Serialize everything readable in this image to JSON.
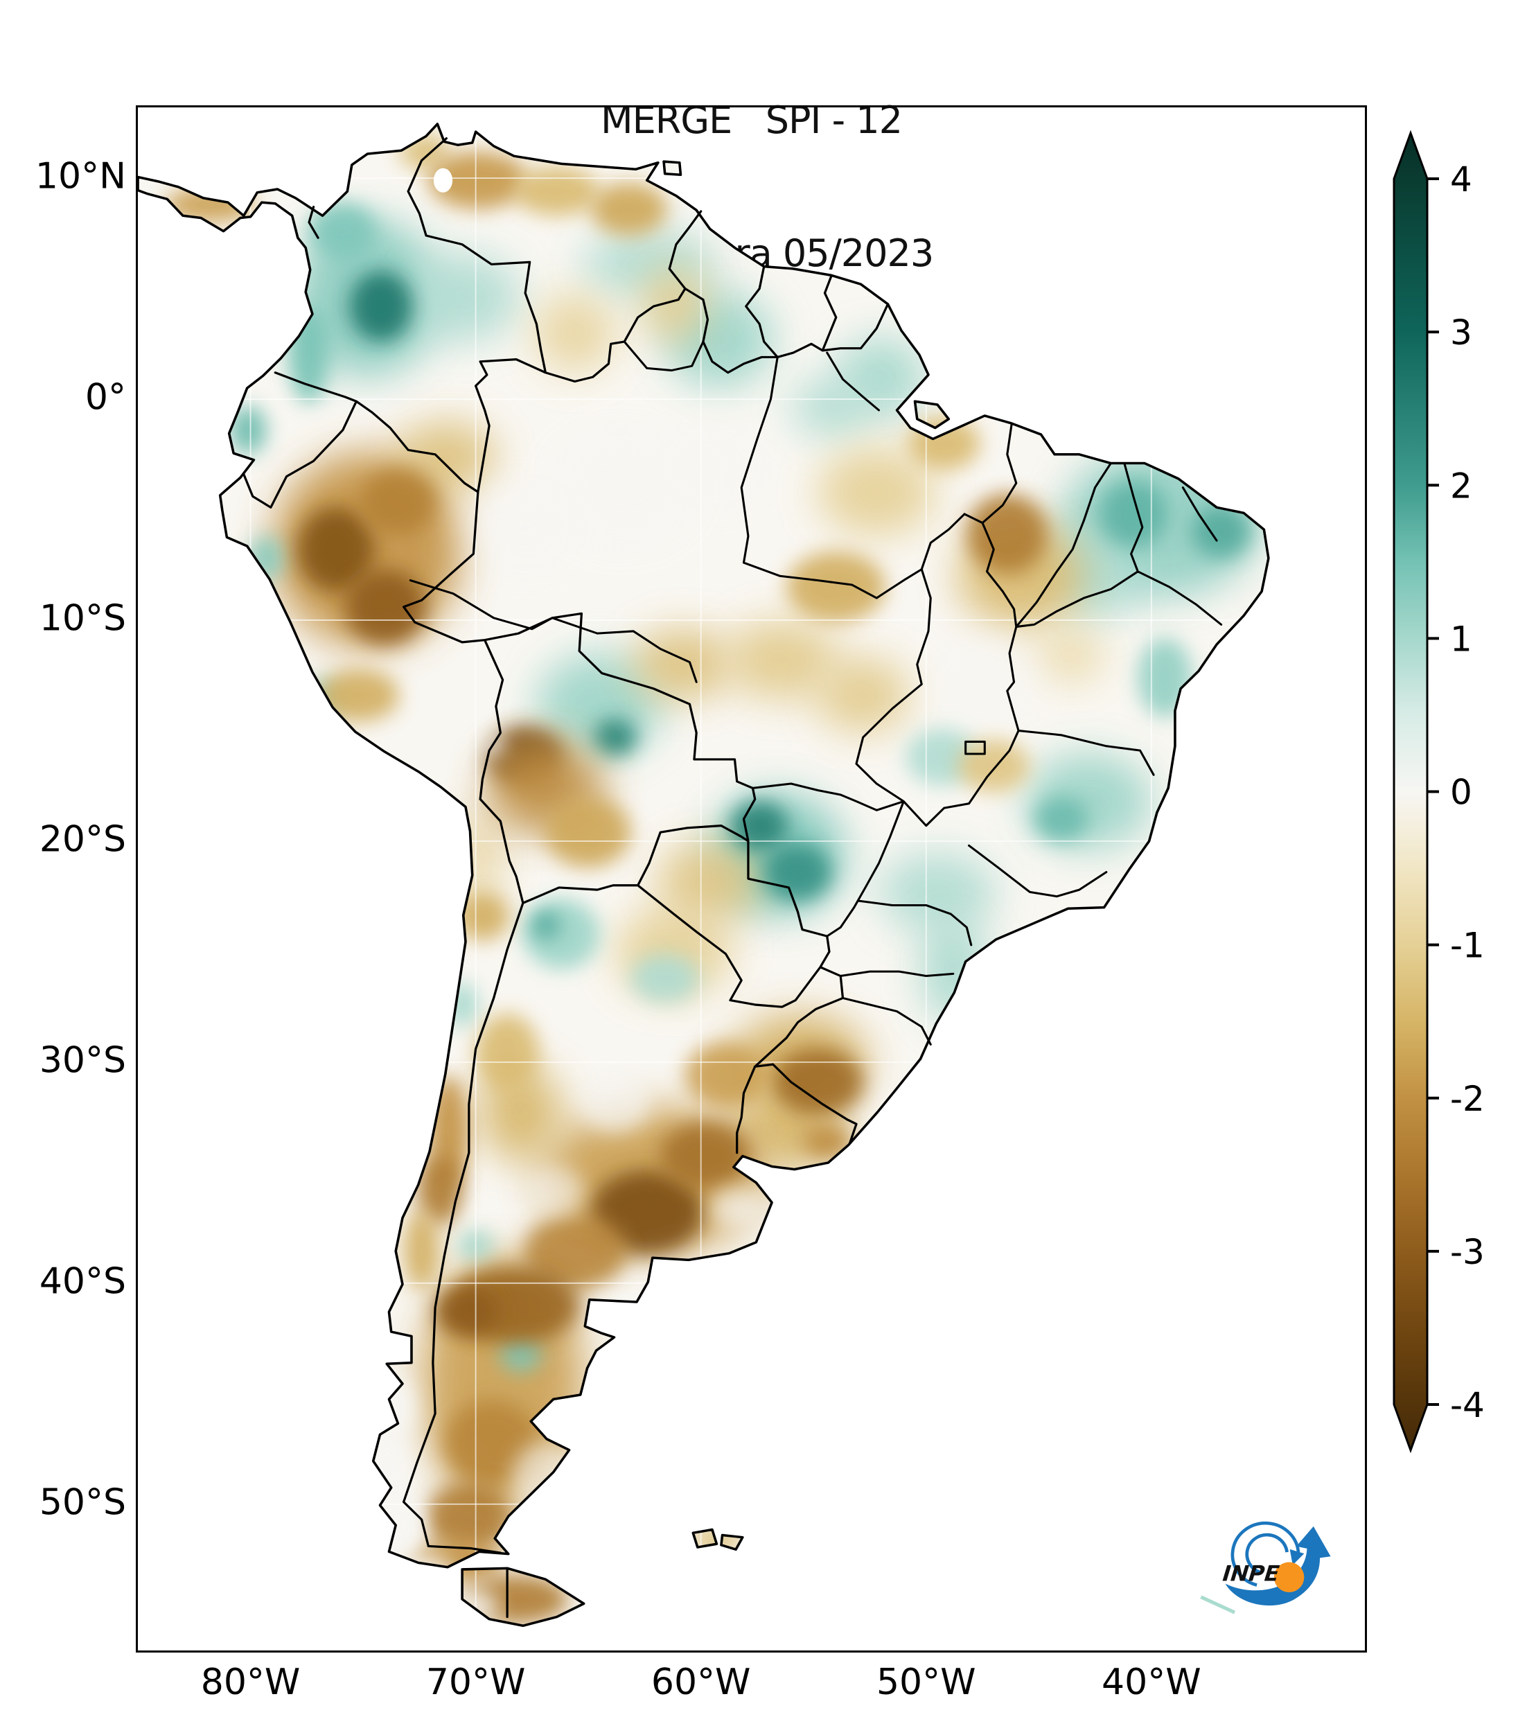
{
  "title": {
    "line1": "MERGE   SPI - 12",
    "line2": "Válido para 05/2023"
  },
  "axes": {
    "lat_ticks": [
      {
        "label": "10°N",
        "lat": 10
      },
      {
        "label": "0°",
        "lat": 0
      },
      {
        "label": "10°S",
        "lat": -10
      },
      {
        "label": "20°S",
        "lat": -20
      },
      {
        "label": "30°S",
        "lat": -30
      },
      {
        "label": "40°S",
        "lat": -40
      },
      {
        "label": "50°S",
        "lat": -50
      }
    ],
    "lon_ticks": [
      {
        "label": "80°W",
        "lon": -80
      },
      {
        "label": "70°W",
        "lon": -70
      },
      {
        "label": "60°W",
        "lon": -60
      },
      {
        "label": "50°W",
        "lon": -50
      },
      {
        "label": "40°W",
        "lon": -40
      }
    ]
  },
  "colorbar": {
    "vmin": -4,
    "vmax": 4,
    "ticks": [
      {
        "label": "4",
        "value": 4
      },
      {
        "label": "3",
        "value": 3
      },
      {
        "label": "2",
        "value": 2
      },
      {
        "label": "1",
        "value": 1
      },
      {
        "label": "0",
        "value": 0
      },
      {
        "label": "-1",
        "value": -1
      },
      {
        "label": "-2",
        "value": -2
      },
      {
        "label": "-3",
        "value": -3
      },
      {
        "label": "-4",
        "value": -4
      }
    ],
    "gradient": [
      {
        "v": 4.3,
        "c": "#072e26"
      },
      {
        "v": 4.0,
        "c": "#0a3c31"
      },
      {
        "v": 3.0,
        "c": "#0f655a"
      },
      {
        "v": 2.0,
        "c": "#3f9c8e"
      },
      {
        "v": 1.5,
        "c": "#74c2b4"
      },
      {
        "v": 1.0,
        "c": "#a6d8cc"
      },
      {
        "v": 0.5,
        "c": "#d8ece6"
      },
      {
        "v": 0.0,
        "c": "#f7f6f3"
      },
      {
        "v": -0.5,
        "c": "#f1e6c4"
      },
      {
        "v": -1.0,
        "c": "#e5d096"
      },
      {
        "v": -1.5,
        "c": "#d6b567"
      },
      {
        "v": -2.0,
        "c": "#c29143"
      },
      {
        "v": -2.5,
        "c": "#aa762d"
      },
      {
        "v": -3.0,
        "c": "#8e5c1c"
      },
      {
        "v": -3.5,
        "c": "#714711"
      },
      {
        "v": -4.0,
        "c": "#54340a"
      },
      {
        "v": -4.3,
        "c": "#432a08"
      }
    ]
  },
  "logo": {
    "text": "INPE",
    "blue": "#1b76bd",
    "orange": "#f7941e"
  },
  "chart_data": {
    "type": "heatmap",
    "title": "MERGE   SPI - 12",
    "subtitle": "Válido para 05/2023",
    "dataset": "MERGE",
    "index": "SPI-12",
    "valid_for": "05/2023",
    "extent": {
      "lon_min": -85,
      "lon_max": -30.52,
      "lat_min": -56.62,
      "lat_max": 13.2
    },
    "colorbar": {
      "label_values": [
        4,
        3,
        2,
        1,
        0,
        -1,
        -2,
        -3,
        -4
      ],
      "scheme": "brown-white-teal diverging (BrBG)"
    },
    "legend_position": "right",
    "regions": [
      {
        "n": "colombia-broad",
        "lon": -74.8,
        "lat": 4.6,
        "rx": 3.2,
        "ry": 3.6,
        "spi": 1.3,
        "b": "x"
      },
      {
        "n": "llanos-light",
        "lon": -70.6,
        "lat": 4.6,
        "rx": 2.6,
        "ry": 2.0,
        "spi": 0.9,
        "b": "x"
      },
      {
        "n": "guayana-venezuela",
        "lon": -62.3,
        "lat": 6.1,
        "rx": 3.0,
        "ry": 1.5,
        "spi": 0.9,
        "b": "x"
      },
      {
        "n": "guyana-roraima",
        "lon": -59.2,
        "lat": 2.7,
        "rx": 2.4,
        "ry": 2.2,
        "spi": 1.1,
        "b": "x"
      },
      {
        "n": "amapa",
        "lon": -52.0,
        "lat": 1.0,
        "rx": 2.0,
        "ry": 1.8,
        "spi": 1.0,
        "b": "x"
      },
      {
        "n": "norte-para",
        "lon": -54.2,
        "lat": -0.4,
        "rx": 1.8,
        "ry": 1.3,
        "spi": 0.9,
        "b": "x"
      },
      {
        "n": "ne-brazil-broad",
        "lon": -39.6,
        "lat": -5.6,
        "rx": 4.4,
        "ry": 3.4,
        "spi": 1.2,
        "b": "x"
      },
      {
        "n": "tocantins-bahia-teal",
        "lon": -42.6,
        "lat": -8.0,
        "rx": 2.0,
        "ry": 2.0,
        "spi": 0.9,
        "b": "x"
      },
      {
        "n": "minas-espirito",
        "lon": -42.8,
        "lat": -18.2,
        "rx": 2.8,
        "ry": 2.2,
        "spi": 1.1,
        "b": "x"
      },
      {
        "n": "beni-broad",
        "lon": -64.5,
        "lat": -13.8,
        "rx": 2.8,
        "ry": 2.3,
        "spi": 1.1,
        "b": "x"
      },
      {
        "n": "pantanal-broad",
        "lon": -56.6,
        "lat": -20.6,
        "rx": 3.0,
        "ry": 2.8,
        "spi": 1.4,
        "b": "x"
      },
      {
        "n": "sp-interior",
        "lon": -49.5,
        "lat": -22.3,
        "rx": 2.6,
        "ry": 1.8,
        "spi": 0.9,
        "b": "x"
      },
      {
        "n": "coast-sc",
        "lon": -48.8,
        "lat": -25.8,
        "rx": 1.4,
        "ry": 2.4,
        "spi": 1.0,
        "b": "x"
      },
      {
        "n": "panama-brown",
        "lon": -81.8,
        "lat": 8.8,
        "rx": 2.0,
        "ry": 0.8,
        "spi": -1.8,
        "b": "s"
      },
      {
        "n": "guajira-tan",
        "lon": -72.3,
        "lat": 11.2,
        "rx": 1.1,
        "ry": 0.8,
        "spi": -1.3,
        "b": "s"
      },
      {
        "n": "falcon-brown",
        "lon": -69.9,
        "lat": 9.9,
        "rx": 2.2,
        "ry": 1.3,
        "spi": -1.9,
        "b": "s"
      },
      {
        "n": "caracas-tan",
        "lon": -66.4,
        "lat": 9.4,
        "rx": 1.9,
        "ry": 1.1,
        "spi": -1.4,
        "b": "s"
      },
      {
        "n": "orinoco-brown",
        "lon": -63.2,
        "lat": 8.6,
        "rx": 1.7,
        "ry": 1.2,
        "spi": -1.7,
        "b": "s"
      },
      {
        "n": "roraima-tan",
        "lon": -61.2,
        "lat": 4.3,
        "rx": 1.4,
        "ry": 1.7,
        "spi": -1.1,
        "b": "x"
      },
      {
        "n": "venezuela-south-tan",
        "lon": -65.6,
        "lat": 3.0,
        "rx": 1.8,
        "ry": 1.8,
        "spi": -0.9,
        "b": "x"
      },
      {
        "n": "peru-amazon-broad",
        "lon": -74.8,
        "lat": -6.8,
        "rx": 4.2,
        "ry": 4.4,
        "spi": -2.0,
        "b": "x"
      },
      {
        "n": "putumayo-tan",
        "lon": -71.3,
        "lat": -2.6,
        "rx": 2.2,
        "ry": 1.6,
        "spi": -1.3,
        "b": "x"
      },
      {
        "n": "rondonia-tan",
        "lon": -60.8,
        "lat": -12.0,
        "rx": 2.2,
        "ry": 1.6,
        "spi": -1.3,
        "b": "x"
      },
      {
        "n": "mt-tan-west",
        "lon": -56.4,
        "lat": -11.8,
        "rx": 2.5,
        "ry": 1.8,
        "spi": -1.1,
        "b": "x"
      },
      {
        "n": "mt-tan-east",
        "lon": -52.8,
        "lat": -13.4,
        "rx": 2.1,
        "ry": 1.7,
        "spi": -1.1,
        "b": "x"
      },
      {
        "n": "para-tan",
        "lon": -52.2,
        "lat": -4.2,
        "rx": 2.6,
        "ry": 2.0,
        "spi": -1.0,
        "b": "x"
      },
      {
        "n": "maranhao-halo",
        "lon": -45.8,
        "lat": -8.0,
        "rx": 2.8,
        "ry": 2.4,
        "spi": -1.4,
        "b": "x"
      },
      {
        "n": "bahia-tan",
        "lon": -43.6,
        "lat": -11.6,
        "rx": 1.5,
        "ry": 1.2,
        "spi": -0.8,
        "b": "x"
      },
      {
        "n": "chaco-tan",
        "lon": -61.2,
        "lat": -25.0,
        "rx": 2.6,
        "ry": 2.0,
        "spi": -1.0,
        "b": "x"
      },
      {
        "n": "paraguay-tan",
        "lon": -59.6,
        "lat": -21.8,
        "rx": 2.3,
        "ry": 1.8,
        "spi": -1.2,
        "b": "x"
      },
      {
        "n": "rs-halo",
        "lon": -55.6,
        "lat": -30.0,
        "rx": 3.0,
        "ry": 2.2,
        "spi": -1.6,
        "b": "x"
      },
      {
        "n": "uruguay-tan",
        "lon": -56.2,
        "lat": -33.0,
        "rx": 2.5,
        "ry": 1.9,
        "spi": -1.5,
        "b": "x"
      },
      {
        "n": "pampas-halo",
        "lon": -62.2,
        "lat": -35.3,
        "rx": 5.0,
        "ry": 3.3,
        "spi": -1.8,
        "b": "x"
      },
      {
        "n": "cuyo-tan",
        "lon": -68.0,
        "lat": -32.3,
        "rx": 1.8,
        "ry": 2.2,
        "spi": -1.5,
        "b": "x"
      },
      {
        "n": "chile-north-tan",
        "lon": -69.9,
        "lat": -20.8,
        "rx": 1.0,
        "ry": 2.2,
        "spi": -0.9,
        "b": "x"
      },
      {
        "n": "patagonia-broad",
        "lon": -68.8,
        "lat": -44.5,
        "rx": 3.6,
        "ry": 5.8,
        "spi": -1.8,
        "b": "x"
      },
      {
        "n": "amazon-white-1",
        "lon": -63.5,
        "lat": -4.0,
        "rx": 3.0,
        "ry": 2.4,
        "spi": 0,
        "b": "x",
        "o": 0.85
      },
      {
        "n": "amazon-white-2",
        "lon": -67.8,
        "lat": -5.8,
        "rx": 2.2,
        "ry": 1.8,
        "spi": 0,
        "b": "x",
        "o": 0.8
      },
      {
        "n": "amazon-white-3",
        "lon": -59.5,
        "lat": -3.0,
        "rx": 2.4,
        "ry": 1.8,
        "spi": 0,
        "b": "x",
        "o": 0.75
      },
      {
        "n": "goias-white",
        "lon": -47.5,
        "lat": -13.0,
        "rx": 2.2,
        "ry": 2.2,
        "spi": 0,
        "b": "x",
        "o": 0.7
      },
      {
        "n": "colombia-core",
        "lon": -74.2,
        "lat": 4.2,
        "rx": 1.4,
        "ry": 1.6,
        "spi": 2.7,
        "b": "s"
      },
      {
        "n": "colombia-north",
        "lon": -75.9,
        "lat": 7.6,
        "rx": 1.5,
        "ry": 1.3,
        "spi": 1.4,
        "b": "s"
      },
      {
        "n": "pacific-coast-colombia",
        "lon": -77.4,
        "lat": 2.0,
        "rx": 0.9,
        "ry": 2.2,
        "spi": 1.5,
        "b": "s"
      },
      {
        "n": "ecuador-coast",
        "lon": -80.1,
        "lat": -1.4,
        "rx": 0.8,
        "ry": 1.1,
        "spi": 1.6,
        "b": "s"
      },
      {
        "n": "ceara-core",
        "lon": -40.8,
        "lat": -5.2,
        "rx": 1.5,
        "ry": 1.5,
        "spi": 1.7,
        "b": "s"
      },
      {
        "n": "rn-core",
        "lon": -36.9,
        "lat": -6.0,
        "rx": 1.3,
        "ry": 1.2,
        "spi": 1.8,
        "b": "s"
      },
      {
        "n": "bahia-coast",
        "lon": -39.4,
        "lat": -12.6,
        "rx": 1.2,
        "ry": 1.8,
        "spi": 1.2,
        "b": "s"
      },
      {
        "n": "minas-core",
        "lon": -44.0,
        "lat": -19.0,
        "rx": 1.2,
        "ry": 1.0,
        "spi": 1.6,
        "b": "s"
      },
      {
        "n": "goias-teal",
        "lon": -49.3,
        "lat": -16.2,
        "rx": 1.6,
        "ry": 1.3,
        "spi": 0.9,
        "b": "s"
      },
      {
        "n": "beni-core",
        "lon": -63.8,
        "lat": -15.3,
        "rx": 0.95,
        "ry": 0.85,
        "spi": 2.4,
        "b": "s"
      },
      {
        "n": "paraguay-river-core",
        "lon": -57.4,
        "lat": -19.3,
        "rx": 1.25,
        "ry": 1.1,
        "spi": 2.5,
        "b": "s"
      },
      {
        "n": "ms-core",
        "lon": -55.7,
        "lat": -21.4,
        "rx": 1.5,
        "ry": 1.3,
        "spi": 2.2,
        "b": "s"
      },
      {
        "n": "chaco-teal",
        "lon": -61.6,
        "lat": -26.2,
        "rx": 1.5,
        "ry": 1.1,
        "spi": 0.9,
        "b": "s"
      },
      {
        "n": "puna-teal",
        "lon": -66.2,
        "lat": -24.2,
        "rx": 1.7,
        "ry": 1.6,
        "spi": 1.1,
        "b": "s"
      },
      {
        "n": "puna-core",
        "lon": -66.9,
        "lat": -23.8,
        "rx": 0.6,
        "ry": 0.6,
        "spi": 1.9,
        "b": "s"
      },
      {
        "n": "peru-coast-north",
        "lon": -79.3,
        "lat": -7.2,
        "rx": 0.8,
        "ry": 1.0,
        "spi": 1.3,
        "b": "s"
      },
      {
        "n": "peru-coast-south",
        "lon": -76.8,
        "lat": -13.6,
        "rx": 0.9,
        "ry": 0.9,
        "spi": 1.2,
        "b": "s"
      },
      {
        "n": "atacama-teal",
        "lon": -70.6,
        "lat": -27.4,
        "rx": 0.7,
        "ry": 1.0,
        "spi": 1.0,
        "b": "s"
      },
      {
        "n": "neuquen-teal",
        "lon": -70.0,
        "lat": -38.3,
        "rx": 0.8,
        "ry": 0.7,
        "spi": 1.0,
        "b": "s"
      },
      {
        "n": "chubut-teal",
        "lon": -68.0,
        "lat": -43.2,
        "rx": 0.9,
        "ry": 0.8,
        "spi": 1.4,
        "b": "s"
      },
      {
        "n": "loreto-core",
        "lon": -76.2,
        "lat": -6.8,
        "rx": 1.7,
        "ry": 1.9,
        "spi": -3.2,
        "b": "s"
      },
      {
        "n": "ucayali-core",
        "lon": -74.0,
        "lat": -9.4,
        "rx": 1.8,
        "ry": 1.7,
        "spi": -3.0,
        "b": "s"
      },
      {
        "n": "maranon-core",
        "lon": -73.4,
        "lat": -4.6,
        "rx": 1.7,
        "ry": 1.5,
        "spi": -2.3,
        "b": "s"
      },
      {
        "n": "peru-andes-south",
        "lon": -75.2,
        "lat": -13.4,
        "rx": 1.8,
        "ry": 1.2,
        "spi": -1.6,
        "b": "s"
      },
      {
        "n": "lapaz-core",
        "lon": -67.8,
        "lat": -16.2,
        "rx": 1.7,
        "ry": 1.4,
        "spi": -3.4,
        "b": "s"
      },
      {
        "n": "bolivia-andes-halo",
        "lon": -66.9,
        "lat": -17.6,
        "rx": 2.6,
        "ry": 2.1,
        "spi": -2.1,
        "b": "x"
      },
      {
        "n": "chuquisaca-tan",
        "lon": -65.0,
        "lat": -19.6,
        "rx": 1.9,
        "ry": 1.6,
        "spi": -1.7,
        "b": "s"
      },
      {
        "n": "mt-brown",
        "lon": -54.0,
        "lat": -8.5,
        "rx": 2.2,
        "ry": 1.6,
        "spi": -1.6,
        "b": "s"
      },
      {
        "n": "tocantins-core",
        "lon": -46.4,
        "lat": -6.1,
        "rx": 1.8,
        "ry": 1.8,
        "spi": -2.4,
        "b": "s"
      },
      {
        "n": "belem-tan",
        "lon": -49.2,
        "lat": -2.0,
        "rx": 1.6,
        "ry": 1.2,
        "spi": -1.4,
        "b": "s"
      },
      {
        "n": "mg-tan",
        "lon": -47.0,
        "lat": -16.6,
        "rx": 1.6,
        "ry": 1.2,
        "spi": -1.2,
        "b": "s"
      },
      {
        "n": "rs-core",
        "lon": -54.8,
        "lat": -30.9,
        "rx": 2.0,
        "ry": 1.5,
        "spi": -2.7,
        "b": "s"
      },
      {
        "n": "uruguay-east",
        "lon": -54.4,
        "lat": -33.6,
        "rx": 1.1,
        "ry": 0.8,
        "spi": -2.1,
        "b": "s"
      },
      {
        "n": "entre-rios",
        "lon": -58.9,
        "lat": -30.6,
        "rx": 1.8,
        "ry": 1.5,
        "spi": -1.8,
        "b": "s"
      },
      {
        "n": "pampas-core",
        "lon": -62.4,
        "lat": -36.8,
        "rx": 2.5,
        "ry": 1.9,
        "spi": -3.3,
        "b": "s"
      },
      {
        "n": "buenos-aires-core",
        "lon": -59.8,
        "lat": -34.2,
        "rx": 2.0,
        "ry": 1.5,
        "spi": -2.6,
        "b": "s"
      },
      {
        "n": "la-pampa-brown",
        "lon": -65.6,
        "lat": -38.6,
        "rx": 2.3,
        "ry": 1.7,
        "spi": -2.2,
        "b": "s"
      },
      {
        "n": "san-juan-tan",
        "lon": -68.6,
        "lat": -29.6,
        "rx": 1.4,
        "ry": 1.8,
        "spi": -1.4,
        "b": "s"
      },
      {
        "n": "antofagasta-brown",
        "lon": -69.7,
        "lat": -23.4,
        "rx": 1.2,
        "ry": 1.1,
        "spi": -1.6,
        "b": "s"
      },
      {
        "n": "chile-central",
        "lon": -71.2,
        "lat": -33.2,
        "rx": 0.9,
        "ry": 2.6,
        "spi": -2.0,
        "b": "s"
      },
      {
        "n": "chile-maule",
        "lon": -71.6,
        "lat": -35.8,
        "rx": 1.0,
        "ry": 1.6,
        "spi": -2.4,
        "b": "s"
      },
      {
        "n": "chile-south",
        "lon": -72.4,
        "lat": -38.5,
        "rx": 0.8,
        "ry": 1.8,
        "spi": -1.6,
        "b": "s"
      },
      {
        "n": "rio-negro-band",
        "lon": -68.3,
        "lat": -41.0,
        "rx": 2.9,
        "ry": 1.7,
        "spi": -2.8,
        "b": "s"
      },
      {
        "n": "neuquen-core",
        "lon": -70.4,
        "lat": -41.3,
        "rx": 1.4,
        "ry": 1.1,
        "spi": -3.0,
        "b": "s"
      },
      {
        "n": "santa-cruz-mid",
        "lon": -69.3,
        "lat": -47.2,
        "rx": 2.1,
        "ry": 1.9,
        "spi": -2.2,
        "b": "s"
      },
      {
        "n": "santa-cruz-south",
        "lon": -70.3,
        "lat": -50.6,
        "rx": 1.9,
        "ry": 1.6,
        "spi": -2.4,
        "b": "s"
      },
      {
        "n": "magallanes-brown",
        "lon": -70.9,
        "lat": -52.6,
        "rx": 2.1,
        "ry": 1.0,
        "spi": -2.0,
        "b": "s"
      },
      {
        "n": "tierra-del-fuego-brown",
        "lon": -68.2,
        "lat": -54.3,
        "rx": 2.3,
        "ry": 1.1,
        "spi": -2.4,
        "b": "s"
      },
      {
        "n": "falklands-tan",
        "lon": -59.3,
        "lat": -51.6,
        "rx": 1.2,
        "ry": 0.6,
        "spi": -1.3,
        "b": "s"
      },
      {
        "n": "pampa-white-1",
        "lon": -58.4,
        "lat": -36.6,
        "rx": 1.2,
        "ry": 0.9,
        "spi": 0,
        "b": "s",
        "o": 0.7
      },
      {
        "n": "cordoba-white",
        "lon": -63.8,
        "lat": -31.8,
        "rx": 1.6,
        "ry": 1.4,
        "spi": 0,
        "b": "s",
        "o": 0.7
      },
      {
        "n": "sanluis-white",
        "lon": -66.5,
        "lat": -35.8,
        "rx": 1.3,
        "ry": 1.1,
        "spi": 0,
        "b": "s",
        "o": 0.6
      },
      {
        "n": "patagonia-white",
        "lon": -67.0,
        "lat": -48.8,
        "rx": 1.4,
        "ry": 1.6,
        "spi": 0,
        "b": "s",
        "o": 0.6
      },
      {
        "n": "schile-white-1",
        "lon": -73.6,
        "lat": -45.6,
        "rx": 0.9,
        "ry": 1.4,
        "spi": 0,
        "b": "s",
        "o": 0.95
      },
      {
        "n": "schile-white-2",
        "lon": -73.9,
        "lat": -48.4,
        "rx": 0.8,
        "ry": 1.6,
        "spi": 0,
        "b": "s",
        "o": 0.95
      },
      {
        "n": "schile-white-3",
        "lon": -73.4,
        "lat": -51.0,
        "rx": 1.0,
        "ry": 1.4,
        "spi": 0,
        "b": "s",
        "o": 0.95
      },
      {
        "n": "magallanes-white",
        "lon": -72.4,
        "lat": -53.2,
        "rx": 1.4,
        "ry": 0.9,
        "spi": 0,
        "b": "s",
        "o": 0.9
      },
      {
        "n": "tdf-white",
        "lon": -70.0,
        "lat": -54.6,
        "rx": 1.0,
        "ry": 0.7,
        "spi": 0,
        "b": "s",
        "o": 0.85
      },
      {
        "n": "titicaca-white",
        "lon": -69.2,
        "lat": -15.7,
        "rx": 0.45,
        "ry": 0.4,
        "spi": 0,
        "b": "s",
        "o": 1
      }
    ]
  }
}
